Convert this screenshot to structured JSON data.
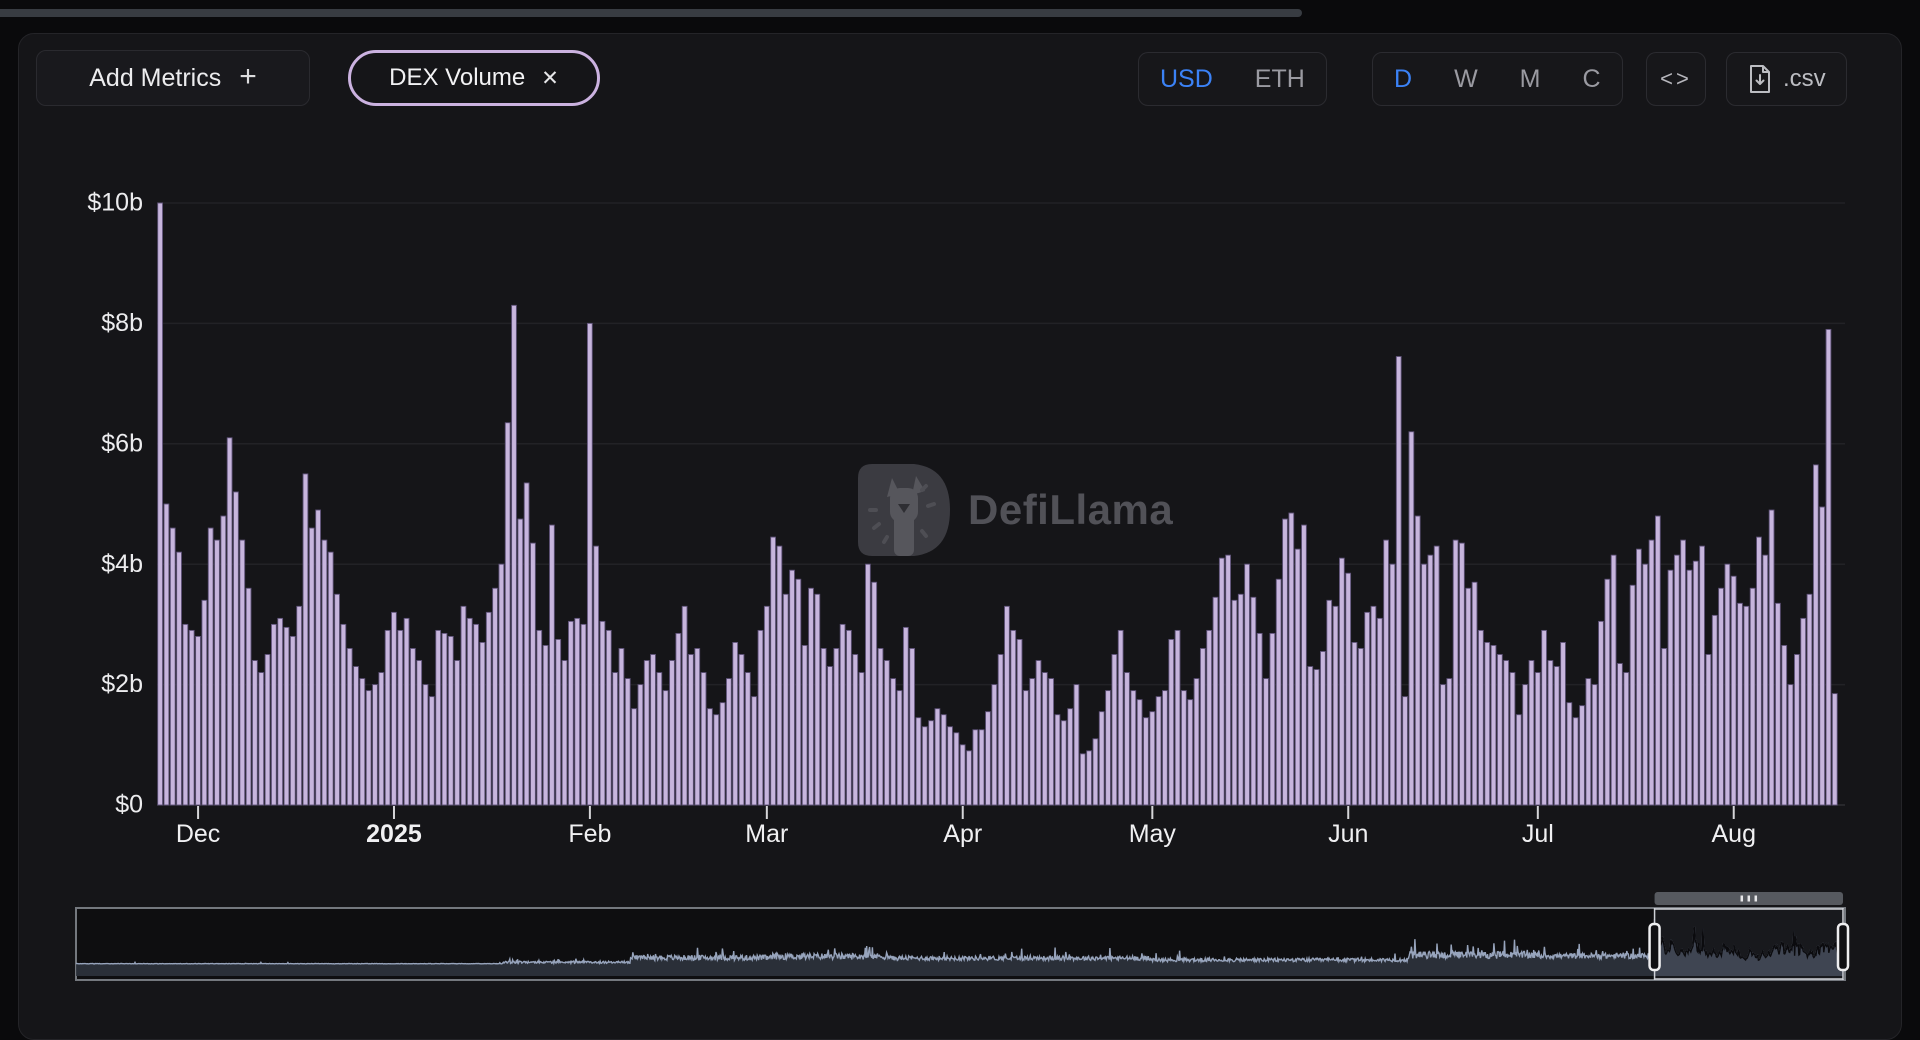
{
  "colors": {
    "accent_blue": "#3b82f6",
    "bar_fill": "#c7b5dd",
    "bar_edge": "#5f5379",
    "pill_border": "#cbb2e0",
    "minimap_line": "#97a4bc",
    "background": "#0a0a0c",
    "panel": "#151518"
  },
  "toolbar": {
    "add_metrics": {
      "label": "Add Metrics",
      "icon": "+"
    },
    "metric_pill": {
      "label": "DEX Volume",
      "close_icon": "✕"
    },
    "currency_toggle": {
      "options": [
        "USD",
        "ETH"
      ],
      "selected": "USD"
    },
    "interval_toggle": {
      "options": [
        "D",
        "W",
        "M",
        "C"
      ],
      "selected": "D"
    },
    "embed_button": {
      "icon": "<>"
    },
    "csv_button": {
      "label": ".csv"
    }
  },
  "watermark": {
    "brand": "DefiLlama"
  },
  "chart_data": {
    "type": "bar",
    "title": "DEX Volume",
    "currency": "USD",
    "unit": "billions USD",
    "ylim": [
      0,
      10
    ],
    "grid": "horizontal",
    "y_ticks": [
      "$0",
      "$2b",
      "$4b",
      "$6b",
      "$8b",
      "$10b"
    ],
    "x_ticks": [
      {
        "label": "Dec",
        "index": 6,
        "bold": false
      },
      {
        "label": "2025",
        "index": 37,
        "bold": true
      },
      {
        "label": "Feb",
        "index": 68,
        "bold": false
      },
      {
        "label": "Mar",
        "index": 96,
        "bold": false
      },
      {
        "label": "Apr",
        "index": 127,
        "bold": false
      },
      {
        "label": "May",
        "index": 157,
        "bold": false
      },
      {
        "label": "Jun",
        "index": 188,
        "bold": false
      },
      {
        "label": "Jul",
        "index": 218,
        "bold": false
      },
      {
        "label": "Aug",
        "index": 249,
        "bold": false
      }
    ],
    "start_date": "2024-11-25",
    "values": [
      10.0,
      5.0,
      4.6,
      4.2,
      3.0,
      2.9,
      2.8,
      3.4,
      4.6,
      4.4,
      4.8,
      6.1,
      5.2,
      4.4,
      3.6,
      2.4,
      2.2,
      2.5,
      3.0,
      3.1,
      2.95,
      2.8,
      3.3,
      5.5,
      4.6,
      4.9,
      4.4,
      4.2,
      3.5,
      3.0,
      2.6,
      2.3,
      2.1,
      1.9,
      2.0,
      2.2,
      2.9,
      3.2,
      2.9,
      3.1,
      2.6,
      2.4,
      2.0,
      1.8,
      2.9,
      2.85,
      2.8,
      2.4,
      3.3,
      3.1,
      3.0,
      2.7,
      3.2,
      3.6,
      4.0,
      6.35,
      8.3,
      4.75,
      5.35,
      4.35,
      2.9,
      2.65,
      4.65,
      2.75,
      2.4,
      3.05,
      3.1,
      3.0,
      8.0,
      4.3,
      3.05,
      2.9,
      2.2,
      2.6,
      2.1,
      1.6,
      2.0,
      2.4,
      2.5,
      2.2,
      1.9,
      2.4,
      2.85,
      3.3,
      2.5,
      2.6,
      2.2,
      1.6,
      1.5,
      1.7,
      2.1,
      2.7,
      2.5,
      2.2,
      1.8,
      2.9,
      3.3,
      4.45,
      4.3,
      3.5,
      3.9,
      3.75,
      2.65,
      3.6,
      3.5,
      2.6,
      2.3,
      2.6,
      3.0,
      2.9,
      2.5,
      2.2,
      4.0,
      3.7,
      2.6,
      2.4,
      2.1,
      1.9,
      2.95,
      2.6,
      1.45,
      1.3,
      1.4,
      1.6,
      1.5,
      1.3,
      1.2,
      1.0,
      0.9,
      1.25,
      1.25,
      1.55,
      2.0,
      2.5,
      3.3,
      2.9,
      2.75,
      1.9,
      2.1,
      2.4,
      2.2,
      2.1,
      1.5,
      1.4,
      1.6,
      2.0,
      0.85,
      0.9,
      1.1,
      1.55,
      1.9,
      2.5,
      2.9,
      2.2,
      1.9,
      1.75,
      1.45,
      1.55,
      1.8,
      1.9,
      2.75,
      2.9,
      1.9,
      1.75,
      2.1,
      2.6,
      2.9,
      3.45,
      4.1,
      4.15,
      3.4,
      3.5,
      4.0,
      3.45,
      2.85,
      2.1,
      2.85,
      3.75,
      4.75,
      4.85,
      4.25,
      4.65,
      2.3,
      2.25,
      2.55,
      3.4,
      3.3,
      4.1,
      3.85,
      2.7,
      2.6,
      3.2,
      3.3,
      3.1,
      4.4,
      4.0,
      7.45,
      1.8,
      6.2,
      4.8,
      4.0,
      4.15,
      4.3,
      2.0,
      2.1,
      4.4,
      4.35,
      3.6,
      3.7,
      2.9,
      2.7,
      2.65,
      2.5,
      2.4,
      2.2,
      1.5,
      2.0,
      2.4,
      2.2,
      2.9,
      2.4,
      2.3,
      2.7,
      1.7,
      1.45,
      1.65,
      2.1,
      2.0,
      3.05,
      3.75,
      4.15,
      2.35,
      2.2,
      3.65,
      4.25,
      4.0,
      4.4,
      4.8,
      2.6,
      3.9,
      4.15,
      4.4,
      3.9,
      4.05,
      4.3,
      2.5,
      3.15,
      3.6,
      4.0,
      3.8,
      3.35,
      3.3,
      3.6,
      4.45,
      4.15,
      4.9,
      3.35,
      2.65,
      2.0,
      2.5,
      3.1,
      3.5,
      5.65,
      4.95,
      7.9,
      1.85
    ]
  },
  "minimap": {
    "description": "full-history DEX volume sparkline with brush selecting the displayed window",
    "ymax": 12,
    "prefix_segments": [
      {
        "n": 600,
        "base": 0.03,
        "amp": 0.08,
        "spike_p": 0.01,
        "spike": 0.3
      },
      {
        "n": 180,
        "base": 0.15,
        "amp": 0.5,
        "spike_p": 0.05,
        "spike": 1.2
      },
      {
        "n": 200,
        "base": 0.8,
        "amp": 1.2,
        "spike_p": 0.05,
        "spike": 2.0
      },
      {
        "n": 165,
        "base": 1.0,
        "amp": 1.4,
        "spike_p": 0.06,
        "spike": 2.5
      },
      {
        "n": 365,
        "base": 0.8,
        "amp": 1.0,
        "spike_p": 0.04,
        "spike": 3.0
      },
      {
        "n": 365,
        "base": 0.5,
        "amp": 0.8,
        "spike_p": 0.03,
        "spike": 1.8
      },
      {
        "n": 180,
        "base": 1.2,
        "amp": 1.6,
        "spike_p": 0.06,
        "spike": 3.5
      },
      {
        "n": 165,
        "base": 1.2,
        "amp": 1.2,
        "spike_p": 0.05,
        "spike": 2.2
      }
    ]
  }
}
